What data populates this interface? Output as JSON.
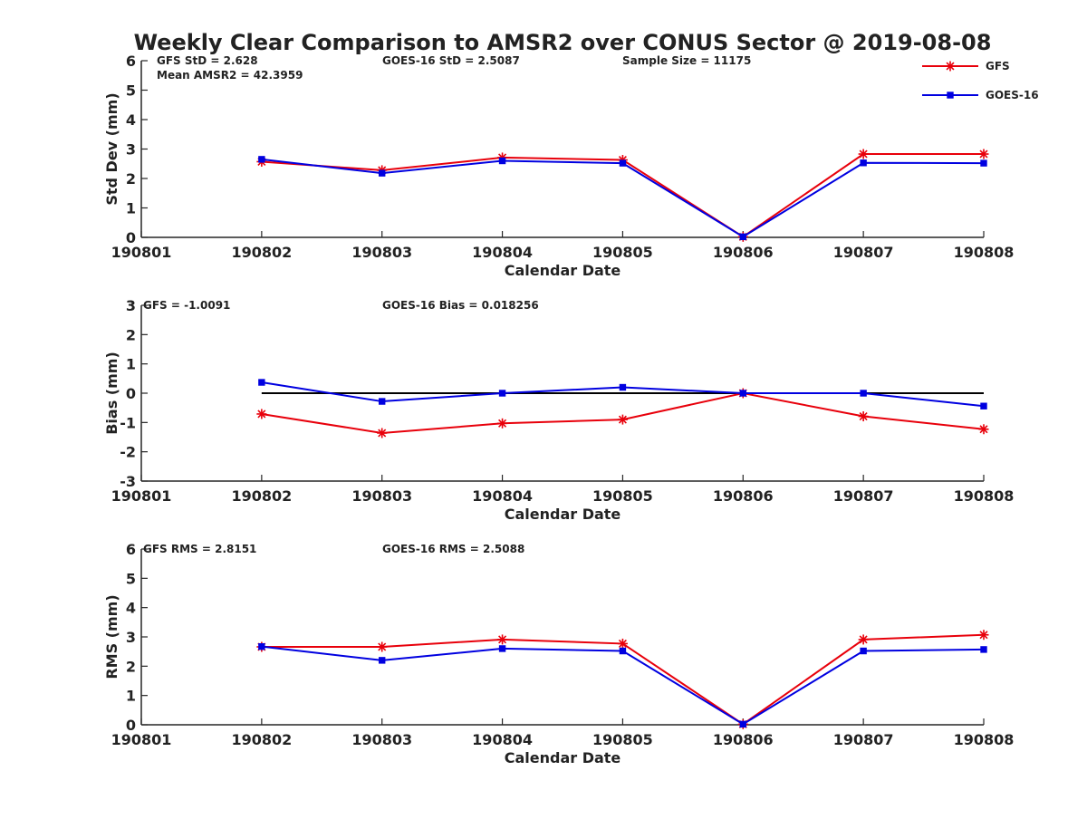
{
  "title": "Weekly Clear Comparison to AMSR2 over CONUS Sector @ 2019-08-08",
  "colors": {
    "gfs": "#e8000b",
    "goes": "#0000e0",
    "zero_line": "#000000",
    "axis": "#262626"
  },
  "legend": {
    "gfs_label": "GFS",
    "goes_label": "GOES-16"
  },
  "chart_data": [
    {
      "type": "line",
      "ylabel": "Std Dev (mm)",
      "xlabel": "Calendar Date",
      "categories": [
        "190801",
        "190802",
        "190803",
        "190804",
        "190805",
        "190806",
        "190807",
        "190808"
      ],
      "ylim": [
        0,
        6
      ],
      "yticks": [
        "0",
        "1",
        "2",
        "3",
        "4",
        "5",
        "6"
      ],
      "annotations": [
        "GFS StD = 2.628",
        "GOES-16 StD = 2.5087",
        "Sample Size = 11175",
        "Mean AMSR2 = 42.3959"
      ],
      "legend": "top-right",
      "series": [
        {
          "name": "GFS",
          "marker": "star",
          "x": [
            "190802",
            "190803",
            "190804",
            "190805",
            "190806",
            "190807",
            "190808"
          ],
          "values": [
            2.57,
            2.28,
            2.71,
            2.63,
            0.02,
            2.83,
            2.83
          ]
        },
        {
          "name": "GOES-16",
          "marker": "square",
          "x": [
            "190802",
            "190803",
            "190804",
            "190805",
            "190806",
            "190807",
            "190808"
          ],
          "values": [
            2.65,
            2.18,
            2.6,
            2.52,
            0.02,
            2.53,
            2.52
          ]
        }
      ]
    },
    {
      "type": "line",
      "ylabel": "Bias (mm)",
      "xlabel": "Calendar Date",
      "categories": [
        "190801",
        "190802",
        "190803",
        "190804",
        "190805",
        "190806",
        "190807",
        "190808"
      ],
      "ylim": [
        -3,
        3
      ],
      "yticks": [
        "-3",
        "-2",
        "-1",
        "0",
        "1",
        "2",
        "3"
      ],
      "annotations": [
        "GFS = -1.0091",
        "GOES-16 Bias  = 0.018256"
      ],
      "zero_line": true,
      "series": [
        {
          "name": "GFS",
          "marker": "star",
          "x": [
            "190802",
            "190803",
            "190804",
            "190805",
            "190806",
            "190807",
            "190808"
          ],
          "values": [
            -0.71,
            -1.36,
            -1.03,
            -0.9,
            0.0,
            -0.79,
            -1.23
          ]
        },
        {
          "name": "GOES-16",
          "marker": "square",
          "x": [
            "190802",
            "190803",
            "190804",
            "190805",
            "190806",
            "190807",
            "190808"
          ],
          "values": [
            0.37,
            -0.28,
            0.0,
            0.2,
            0.0,
            0.0,
            -0.44
          ]
        }
      ]
    },
    {
      "type": "line",
      "ylabel": "RMS (mm)",
      "xlabel": "Calendar Date",
      "categories": [
        "190801",
        "190802",
        "190803",
        "190804",
        "190805",
        "190806",
        "190807",
        "190808"
      ],
      "ylim": [
        0,
        6
      ],
      "yticks": [
        "0",
        "1",
        "2",
        "3",
        "4",
        "5",
        "6"
      ],
      "annotations": [
        "GFS RMS = 2.8151",
        "GOES-16 RMS = 2.5088"
      ],
      "series": [
        {
          "name": "GFS",
          "marker": "star",
          "x": [
            "190802",
            "190803",
            "190804",
            "190805",
            "190806",
            "190807",
            "190808"
          ],
          "values": [
            2.66,
            2.66,
            2.91,
            2.77,
            0.02,
            2.91,
            3.07
          ]
        },
        {
          "name": "GOES-16",
          "marker": "square",
          "x": [
            "190802",
            "190803",
            "190804",
            "190805",
            "190806",
            "190807",
            "190808"
          ],
          "values": [
            2.67,
            2.2,
            2.6,
            2.52,
            0.02,
            2.52,
            2.57
          ]
        }
      ]
    }
  ]
}
